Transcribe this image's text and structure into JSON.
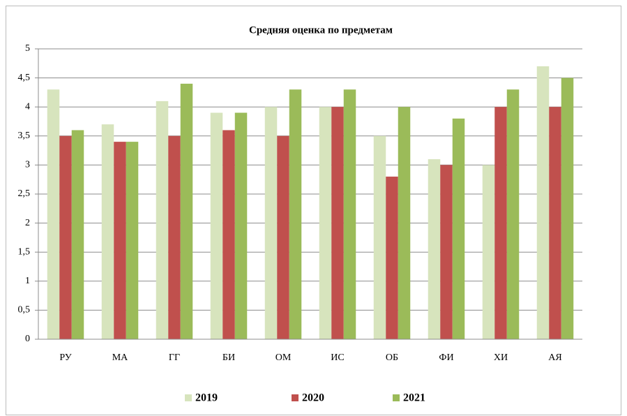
{
  "chart_data": {
    "type": "bar",
    "title": "Средняя оценка по предметам",
    "categories": [
      "РУ",
      "МА",
      "ГГ",
      "БИ",
      "ОМ",
      "ИС",
      "ОБ",
      "ФИ",
      "ХИ",
      "АЯ"
    ],
    "series": [
      {
        "name": "2019",
        "color": "#d7e4bd",
        "values": [
          4.3,
          3.7,
          4.1,
          3.9,
          4.0,
          4.0,
          3.5,
          3.1,
          3.0,
          4.7
        ]
      },
      {
        "name": "2020",
        "color": "#c0504d",
        "values": [
          3.5,
          3.4,
          3.5,
          3.6,
          3.5,
          4.0,
          2.8,
          3.0,
          4.0,
          4.0
        ]
      },
      {
        "name": "2021",
        "color": "#9bbb59",
        "values": [
          3.6,
          3.4,
          4.4,
          3.9,
          4.3,
          4.3,
          4.0,
          3.8,
          4.3,
          4.5
        ]
      }
    ],
    "ylim": [
      0,
      5
    ],
    "yticks": [
      0,
      {
        "value": 0.5,
        "label": "0,5"
      },
      1,
      {
        "value": 1.5,
        "label": "1,5"
      },
      2,
      {
        "value": 2.5,
        "label": "2,5"
      },
      3,
      {
        "value": 3.5,
        "label": "3,5"
      },
      4,
      {
        "value": 4.5,
        "label": "4,5"
      },
      5
    ],
    "grid": true,
    "legend": "bottom"
  }
}
